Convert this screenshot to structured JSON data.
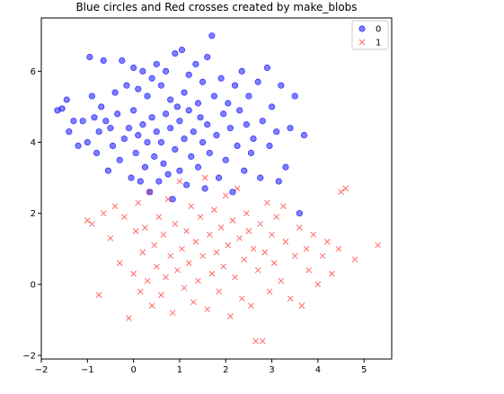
{
  "colors": {
    "series0": "#0000ff",
    "series1": "#ff0000",
    "axis": "#000000",
    "legend_border": "#cccccc"
  },
  "chart_data": {
    "type": "scatter",
    "title": "Blue circles and Red crosses created by make_blobs",
    "xlabel": "",
    "ylabel": "",
    "xlim": [
      -2,
      5.6
    ],
    "ylim": [
      -2.1,
      7.5
    ],
    "xticks": [
      -2,
      -1,
      0,
      1,
      2,
      3,
      4,
      5
    ],
    "yticks": [
      -2,
      0,
      2,
      4,
      6
    ],
    "grid": false,
    "legend_position": "top-right",
    "series": [
      {
        "name": "0",
        "marker": "circle",
        "color": "#0000ff",
        "points": [
          [
            -1.65,
            4.9
          ],
          [
            -1.55,
            4.95
          ],
          [
            -1.45,
            5.2
          ],
          [
            -1.4,
            4.3
          ],
          [
            -1.3,
            4.6
          ],
          [
            -1.2,
            3.9
          ],
          [
            -1.1,
            4.6
          ],
          [
            -1.0,
            4.0
          ],
          [
            -0.95,
            6.4
          ],
          [
            -0.9,
            5.3
          ],
          [
            -0.85,
            4.7
          ],
          [
            -0.8,
            3.7
          ],
          [
            -0.75,
            4.3
          ],
          [
            -0.7,
            5.0
          ],
          [
            -0.65,
            6.3
          ],
          [
            -0.6,
            4.6
          ],
          [
            -0.55,
            3.2
          ],
          [
            -0.5,
            4.4
          ],
          [
            -0.45,
            3.9
          ],
          [
            -0.4,
            5.4
          ],
          [
            -0.35,
            4.8
          ],
          [
            -0.3,
            3.5
          ],
          [
            -0.25,
            6.3
          ],
          [
            -0.2,
            4.1
          ],
          [
            -0.15,
            5.6
          ],
          [
            -0.1,
            4.4
          ],
          [
            -0.05,
            3.0
          ],
          [
            0.0,
            6.1
          ],
          [
            0.0,
            4.9
          ],
          [
            0.05,
            3.7
          ],
          [
            0.1,
            5.5
          ],
          [
            0.1,
            4.2
          ],
          [
            0.15,
            2.9
          ],
          [
            0.2,
            6.0
          ],
          [
            0.2,
            4.5
          ],
          [
            0.25,
            3.3
          ],
          [
            0.3,
            5.3
          ],
          [
            0.3,
            4.0
          ],
          [
            0.35,
            2.6
          ],
          [
            0.4,
            5.8
          ],
          [
            0.4,
            4.7
          ],
          [
            0.45,
            3.6
          ],
          [
            0.5,
            6.2
          ],
          [
            0.5,
            4.3
          ],
          [
            0.55,
            2.9
          ],
          [
            0.6,
            5.6
          ],
          [
            0.6,
            4.0
          ],
          [
            0.65,
            3.4
          ],
          [
            0.7,
            6.0
          ],
          [
            0.7,
            4.8
          ],
          [
            0.75,
            3.1
          ],
          [
            0.8,
            5.2
          ],
          [
            0.8,
            4.4
          ],
          [
            0.85,
            2.4
          ],
          [
            0.9,
            6.5
          ],
          [
            0.9,
            3.8
          ],
          [
            0.95,
            5.0
          ],
          [
            1.0,
            4.6
          ],
          [
            1.0,
            3.2
          ],
          [
            1.05,
            6.6
          ],
          [
            1.1,
            5.4
          ],
          [
            1.1,
            4.1
          ],
          [
            1.15,
            2.8
          ],
          [
            1.2,
            5.9
          ],
          [
            1.2,
            4.9
          ],
          [
            1.25,
            3.6
          ],
          [
            1.3,
            4.3
          ],
          [
            1.35,
            6.2
          ],
          [
            1.4,
            5.1
          ],
          [
            1.4,
            3.3
          ],
          [
            1.45,
            4.7
          ],
          [
            1.5,
            5.7
          ],
          [
            1.5,
            4.0
          ],
          [
            1.55,
            2.7
          ],
          [
            1.6,
            6.4
          ],
          [
            1.6,
            4.5
          ],
          [
            1.65,
            3.7
          ],
          [
            1.7,
            7.0
          ],
          [
            1.75,
            5.3
          ],
          [
            1.8,
            4.2
          ],
          [
            1.85,
            3.0
          ],
          [
            1.9,
            5.8
          ],
          [
            1.95,
            4.8
          ],
          [
            2.0,
            3.5
          ],
          [
            2.05,
            5.1
          ],
          [
            2.1,
            4.4
          ],
          [
            2.15,
            2.6
          ],
          [
            2.2,
            5.6
          ],
          [
            2.25,
            3.9
          ],
          [
            2.3,
            4.9
          ],
          [
            2.35,
            6.0
          ],
          [
            2.4,
            3.2
          ],
          [
            2.45,
            4.5
          ],
          [
            2.5,
            5.3
          ],
          [
            2.55,
            3.7
          ],
          [
            2.6,
            4.1
          ],
          [
            2.7,
            5.7
          ],
          [
            2.75,
            3.0
          ],
          [
            2.8,
            4.6
          ],
          [
            2.9,
            6.1
          ],
          [
            2.95,
            3.9
          ],
          [
            3.0,
            5.0
          ],
          [
            3.1,
            4.3
          ],
          [
            3.15,
            2.9
          ],
          [
            3.2,
            5.6
          ],
          [
            3.3,
            3.3
          ],
          [
            3.4,
            4.4
          ],
          [
            3.5,
            5.3
          ],
          [
            3.6,
            2.0
          ],
          [
            3.7,
            4.2
          ]
        ]
      },
      {
        "name": "1",
        "marker": "x",
        "color": "#ff0000",
        "points": [
          [
            -1.0,
            1.8
          ],
          [
            -0.9,
            1.7
          ],
          [
            -0.75,
            -0.3
          ],
          [
            -0.65,
            2.0
          ],
          [
            -0.5,
            1.3
          ],
          [
            -0.4,
            2.2
          ],
          [
            -0.3,
            0.6
          ],
          [
            -0.2,
            1.9
          ],
          [
            -0.1,
            -0.95
          ],
          [
            0.0,
            0.3
          ],
          [
            0.05,
            1.5
          ],
          [
            0.1,
            2.3
          ],
          [
            0.15,
            -0.2
          ],
          [
            0.2,
            0.9
          ],
          [
            0.25,
            1.6
          ],
          [
            0.3,
            0.1
          ],
          [
            0.35,
            2.6
          ],
          [
            0.4,
            -0.6
          ],
          [
            0.45,
            1.1
          ],
          [
            0.5,
            0.5
          ],
          [
            0.55,
            1.9
          ],
          [
            0.6,
            -0.3
          ],
          [
            0.65,
            1.4
          ],
          [
            0.7,
            0.2
          ],
          [
            0.75,
            2.4
          ],
          [
            0.8,
            0.8
          ],
          [
            0.85,
            -0.8
          ],
          [
            0.9,
            1.7
          ],
          [
            0.95,
            0.4
          ],
          [
            1.0,
            2.9
          ],
          [
            1.05,
            1.0
          ],
          [
            1.1,
            -0.1
          ],
          [
            1.15,
            1.5
          ],
          [
            1.2,
            0.6
          ],
          [
            1.25,
            2.2
          ],
          [
            1.3,
            -0.5
          ],
          [
            1.35,
            1.2
          ],
          [
            1.4,
            0.1
          ],
          [
            1.45,
            1.9
          ],
          [
            1.5,
            0.8
          ],
          [
            1.55,
            3.0
          ],
          [
            1.6,
            -0.7
          ],
          [
            1.65,
            1.4
          ],
          [
            1.7,
            0.3
          ],
          [
            1.75,
            2.1
          ],
          [
            1.8,
            0.9
          ],
          [
            1.85,
            -0.2
          ],
          [
            1.9,
            1.6
          ],
          [
            1.95,
            0.5
          ],
          [
            2.0,
            2.5
          ],
          [
            2.05,
            1.1
          ],
          [
            2.1,
            -0.9
          ],
          [
            2.15,
            1.8
          ],
          [
            2.2,
            0.2
          ],
          [
            2.25,
            2.7
          ],
          [
            2.3,
            1.3
          ],
          [
            2.35,
            -0.4
          ],
          [
            2.4,
            0.7
          ],
          [
            2.45,
            2.0
          ],
          [
            2.5,
            1.5
          ],
          [
            2.55,
            -0.6
          ],
          [
            2.6,
            1.0
          ],
          [
            2.65,
            -1.6
          ],
          [
            2.7,
            0.4
          ],
          [
            2.75,
            1.7
          ],
          [
            2.8,
            -1.6
          ],
          [
            2.85,
            0.9
          ],
          [
            2.9,
            2.3
          ],
          [
            2.95,
            -0.2
          ],
          [
            3.0,
            1.4
          ],
          [
            3.05,
            0.6
          ],
          [
            3.1,
            1.9
          ],
          [
            3.2,
            0.1
          ],
          [
            3.25,
            2.2
          ],
          [
            3.3,
            1.2
          ],
          [
            3.4,
            -0.4
          ],
          [
            3.5,
            0.8
          ],
          [
            3.6,
            1.6
          ],
          [
            3.65,
            -0.6
          ],
          [
            3.75,
            1.0
          ],
          [
            3.8,
            0.4
          ],
          [
            3.9,
            1.4
          ],
          [
            4.0,
            0.0
          ],
          [
            4.1,
            0.8
          ],
          [
            4.2,
            1.2
          ],
          [
            4.3,
            0.3
          ],
          [
            4.45,
            1.0
          ],
          [
            4.5,
            2.6
          ],
          [
            4.6,
            2.7
          ],
          [
            4.8,
            0.7
          ],
          [
            5.3,
            1.1
          ]
        ]
      }
    ]
  }
}
